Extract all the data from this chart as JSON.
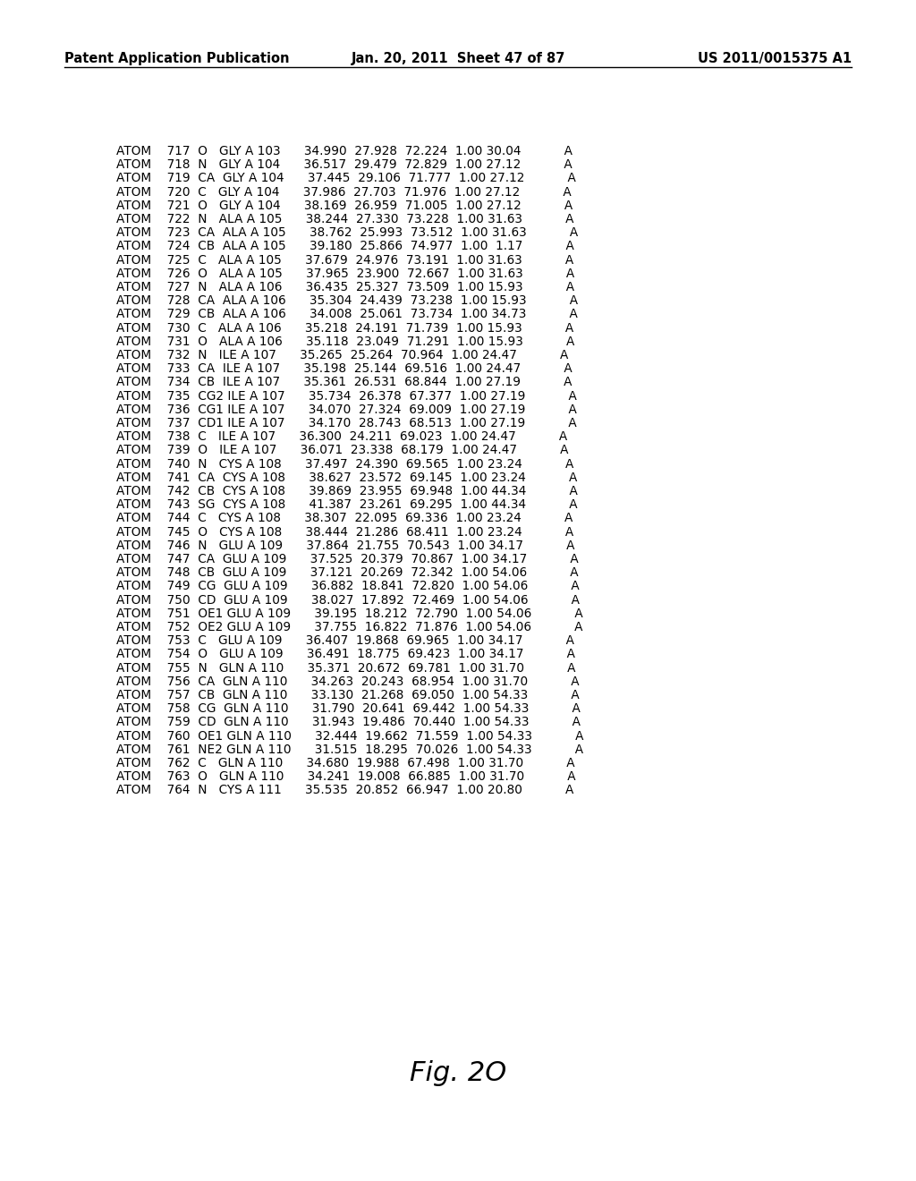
{
  "header_left": "Patent Application Publication",
  "header_center": "Jan. 20, 2011  Sheet 47 of 87",
  "header_right": "US 2011/0015375 A1",
  "figure_label": "Fig. 2O",
  "lines": [
    "ATOM    717  O   GLY A 103      34.990  27.928  72.224  1.00 30.04           A",
    "ATOM    718  N   GLY A 104      36.517  29.479  72.829  1.00 27.12           A",
    "ATOM    719  CA  GLY A 104      37.445  29.106  71.777  1.00 27.12           A",
    "ATOM    720  C   GLY A 104      37.986  27.703  71.976  1.00 27.12           A",
    "ATOM    721  O   GLY A 104      38.169  26.959  71.005  1.00 27.12           A",
    "ATOM    722  N   ALA A 105      38.244  27.330  73.228  1.00 31.63           A",
    "ATOM    723  CA  ALA A 105      38.762  25.993  73.512  1.00 31.63           A",
    "ATOM    724  CB  ALA A 105      39.180  25.866  74.977  1.00  1.17           A",
    "ATOM    725  C   ALA A 105      37.679  24.976  73.191  1.00 31.63           A",
    "ATOM    726  O   ALA A 105      37.965  23.900  72.667  1.00 31.63           A",
    "ATOM    727  N   ALA A 106      36.435  25.327  73.509  1.00 15.93           A",
    "ATOM    728  CA  ALA A 106      35.304  24.439  73.238  1.00 15.93           A",
    "ATOM    729  CB  ALA A 106      34.008  25.061  73.734  1.00 34.73           A",
    "ATOM    730  C   ALA A 106      35.218  24.191  71.739  1.00 15.93           A",
    "ATOM    731  O   ALA A 106      35.118  23.049  71.291  1.00 15.93           A",
    "ATOM    732  N   ILE A 107      35.265  25.264  70.964  1.00 24.47           A",
    "ATOM    733  CA  ILE A 107      35.198  25.144  69.516  1.00 24.47           A",
    "ATOM    734  CB  ILE A 107      35.361  26.531  68.844  1.00 27.19           A",
    "ATOM    735  CG2 ILE A 107      35.734  26.378  67.377  1.00 27.19           A",
    "ATOM    736  CG1 ILE A 107      34.070  27.324  69.009  1.00 27.19           A",
    "ATOM    737  CD1 ILE A 107      34.170  28.743  68.513  1.00 27.19           A",
    "ATOM    738  C   ILE A 107      36.300  24.211  69.023  1.00 24.47           A",
    "ATOM    739  O   ILE A 107      36.071  23.338  68.179  1.00 24.47           A",
    "ATOM    740  N   CYS A 108      37.497  24.390  69.565  1.00 23.24           A",
    "ATOM    741  CA  CYS A 108      38.627  23.572  69.145  1.00 23.24           A",
    "ATOM    742  CB  CYS A 108      39.869  23.955  69.948  1.00 44.34           A",
    "ATOM    743  SG  CYS A 108      41.387  23.261  69.295  1.00 44.34           A",
    "ATOM    744  C   CYS A 108      38.307  22.095  69.336  1.00 23.24           A",
    "ATOM    745  O   CYS A 108      38.444  21.286  68.411  1.00 23.24           A",
    "ATOM    746  N   GLU A 109      37.864  21.755  70.543  1.00 34.17           A",
    "ATOM    747  CA  GLU A 109      37.525  20.379  70.867  1.00 34.17           A",
    "ATOM    748  CB  GLU A 109      37.121  20.269  72.342  1.00 54.06           A",
    "ATOM    749  CG  GLU A 109      36.882  18.841  72.820  1.00 54.06           A",
    "ATOM    750  CD  GLU A 109      38.027  17.892  72.469  1.00 54.06           A",
    "ATOM    751  OE1 GLU A 109      39.195  18.212  72.790  1.00 54.06           A",
    "ATOM    752  OE2 GLU A 109      37.755  16.822  71.876  1.00 54.06           A",
    "ATOM    753  C   GLU A 109      36.407  19.868  69.965  1.00 34.17           A",
    "ATOM    754  O   GLU A 109      36.491  18.775  69.423  1.00 34.17           A",
    "ATOM    755  N   GLN A 110      35.371  20.672  69.781  1.00 31.70           A",
    "ATOM    756  CA  GLN A 110      34.263  20.243  68.954  1.00 31.70           A",
    "ATOM    757  CB  GLN A 110      33.130  21.268  69.050  1.00 54.33           A",
    "ATOM    758  CG  GLN A 110      31.790  20.641  69.442  1.00 54.33           A",
    "ATOM    759  CD  GLN A 110      31.943  19.486  70.440  1.00 54.33           A",
    "ATOM    760  OE1 GLN A 110      32.444  19.662  71.559  1.00 54.33           A",
    "ATOM    761  NE2 GLN A 110      31.515  18.295  70.026  1.00 54.33           A",
    "ATOM    762  C   GLN A 110      34.680  19.988  67.498  1.00 31.70           A",
    "ATOM    763  O   GLN A 110      34.241  19.008  66.885  1.00 31.70           A",
    "ATOM    764  N   CYS A 111      35.535  20.852  66.947  1.00 20.80           A"
  ],
  "bg_color": "#ffffff",
  "text_color": "#000000",
  "header_fontsize": 10.5,
  "data_fontsize": 9.8,
  "fig_label_fontsize": 22
}
